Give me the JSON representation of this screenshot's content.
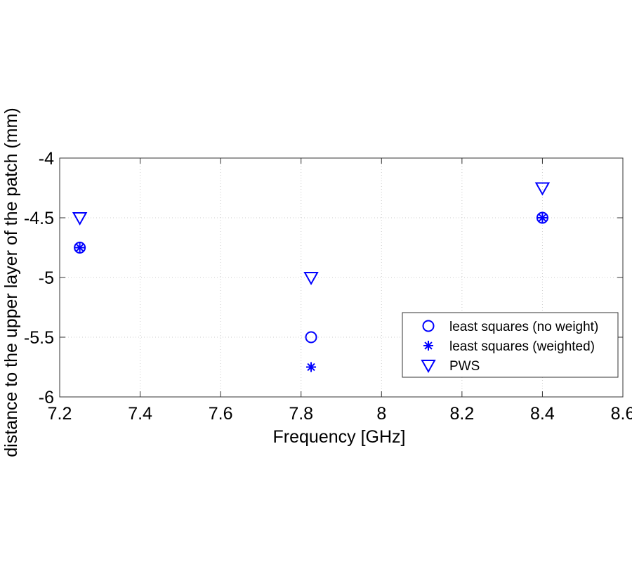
{
  "chart_data": {
    "type": "scatter",
    "title": "",
    "xlabel": "Frequency [GHz]",
    "ylabel": "distance to the upper layer of the patch (mm)",
    "xlim": [
      7.2,
      8.6
    ],
    "ylim": [
      -6,
      -4
    ],
    "xticks": [
      7.2,
      7.4,
      7.6,
      7.8,
      8,
      8.2,
      8.4,
      8.6
    ],
    "xtick_labels": [
      "7.2",
      "7.4",
      "7.6",
      "7.8",
      "8",
      "8.2",
      "8.4",
      "8.6"
    ],
    "yticks": [
      -6,
      -5.5,
      -5,
      -4.5,
      -4
    ],
    "ytick_labels": [
      "-6",
      "-5.5",
      "-5",
      "-4.5",
      "-4"
    ],
    "grid": true,
    "legend_position": "bottom-right",
    "series": [
      {
        "name": "least squares (no weight)",
        "marker": "circle",
        "color": "#0000ff",
        "x": [
          7.25,
          7.825,
          8.4
        ],
        "y": [
          -4.75,
          -5.5,
          -4.5
        ]
      },
      {
        "name": "least squares (weighted)",
        "marker": "asterisk",
        "color": "#0000ff",
        "x": [
          7.25,
          7.825,
          8.4
        ],
        "y": [
          -4.75,
          -5.75,
          -4.5
        ]
      },
      {
        "name": "PWS",
        "marker": "triangle-down",
        "color": "#0000ff",
        "x": [
          7.25,
          7.825,
          8.4
        ],
        "y": [
          -4.5,
          -5.0,
          -4.25
        ]
      }
    ]
  }
}
